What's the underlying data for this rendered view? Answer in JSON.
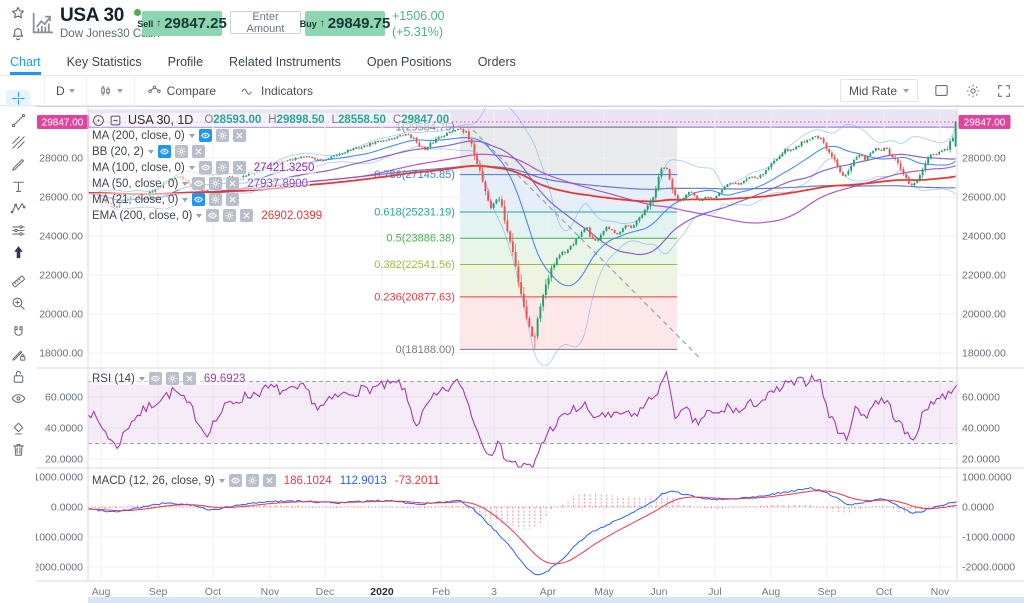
{
  "header": {
    "symbol": "USA 30",
    "subtitle": "Dow Jones30 Cash",
    "status_dot_color": "#4caf50",
    "sell_label": "Sell",
    "sell_price": "29847.25",
    "enter_amount_label": "Enter Amount",
    "buy_label": "Buy",
    "buy_price": "29849.75",
    "change": "+1506.00",
    "change_pct": "(+5.31%)",
    "button_color": "#8ed5b2",
    "change_color": "#4db386",
    "arrow_up": "↑"
  },
  "tabs": {
    "items": [
      "Chart",
      "Key Statistics",
      "Profile",
      "Related Instruments",
      "Open Positions",
      "Orders"
    ],
    "active": 0
  },
  "toolbar": {
    "timeframe": "D",
    "compare_label": "Compare",
    "indicators_label": "Indicators",
    "mid_rate_label": "Mid Rate"
  },
  "left_toolbar_icons": [
    "crosshair",
    "trend-line",
    "fib-retracement",
    "brush",
    "text",
    "xabcd-pattern",
    "forecast",
    "arrow-mark",
    "ruler",
    "zoom-in",
    "magnet",
    "drawing-mode",
    "lock",
    "eye",
    "remove-objects",
    "trash"
  ],
  "chart_data": {
    "type": "candlestick",
    "symbol_title": "USA 30, 1D",
    "ohlc": {
      "o_label": "O",
      "o": "28593.00",
      "h_label": "H",
      "h": "29898.50",
      "l_label": "L",
      "l": "28558.50",
      "c_label": "C",
      "c": "29847.00",
      "value_color": "#26a69a"
    },
    "indicators_legend": [
      {
        "name": "MA (200, close, 0)",
        "value": "",
        "value_color": "",
        "eye_active": true
      },
      {
        "name": "BB (20, 2)",
        "value": "",
        "value_color": "",
        "eye_active": true
      },
      {
        "name": "MA (100, close, 0)",
        "value": "27421.3250",
        "value_color": "#9c27b0",
        "eye_active": false
      },
      {
        "name": "MA (50, close, 0)",
        "value": "27937.8900",
        "value_color": "#7e57c2",
        "eye_active": false
      },
      {
        "name": "MA (21, close, 0)",
        "value": "",
        "value_color": "",
        "eye_active": true
      },
      {
        "name": "EMA (200, close, 0)",
        "value": "26902.0399",
        "value_color": "#e53935",
        "eye_active": false
      }
    ],
    "price_axis": {
      "current_label": "29847.00",
      "current_value": 29847,
      "current_color": "#e0459e",
      "ticks": [
        {
          "label": "28000.00",
          "value": 28000
        },
        {
          "label": "26000.00",
          "value": 26000
        },
        {
          "label": "24000.00",
          "value": 24000
        },
        {
          "label": "22000.00",
          "value": 22000
        },
        {
          "label": "20000.00",
          "value": 20000
        },
        {
          "label": "18000.00",
          "value": 18000
        }
      ]
    },
    "months": [
      {
        "label": "Aug",
        "f": 0.015
      },
      {
        "label": "Sep",
        "f": 0.0806
      },
      {
        "label": "Oct",
        "f": 0.1438
      },
      {
        "label": "Nov",
        "f": 0.2094
      },
      {
        "label": "Dec",
        "f": 0.2727
      },
      {
        "label": "2020",
        "f": 0.3383,
        "bold": true
      },
      {
        "label": "Feb",
        "f": 0.4062
      },
      {
        "label": "3",
        "f": 0.4672
      },
      {
        "label": "Apr",
        "f": 0.5293
      },
      {
        "label": "May",
        "f": 0.5938
      },
      {
        "label": "Jun",
        "f": 0.6571
      },
      {
        "label": "Jul",
        "f": 0.7215
      },
      {
        "label": "Aug",
        "f": 0.7859
      },
      {
        "label": "Sep",
        "f": 0.8504
      },
      {
        "label": "Oct",
        "f": 0.916
      },
      {
        "label": "Nov",
        "f": 0.9804
      }
    ],
    "fib": {
      "zone": [
        0.428,
        0.678
      ],
      "top_zone": {
        "from_price": 29584.75,
        "to_price": 30500,
        "fill": "rgba(126,87,194,0.16)",
        "line_color": "#8e6cc8"
      },
      "levels": [
        {
          "label": "1(29584.75)",
          "value": 29584.75,
          "color": "#787b86",
          "band_fill": "rgba(120,123,134,0.16)"
        },
        {
          "label": "0.786(27145.85)",
          "value": 27145.85,
          "color": "#3d7dd6",
          "band_fill": "rgba(61,125,214,0.13)"
        },
        {
          "label": "0.618(25231.19)",
          "value": 25231.19,
          "color": "#26a69a",
          "band_fill": "rgba(38,166,154,0.13)"
        },
        {
          "label": "0.5(23886.38)",
          "value": 23886.38,
          "color": "#4caf50",
          "band_fill": "rgba(76,175,80,0.13)"
        },
        {
          "label": "0.382(22541.56)",
          "value": 22541.56,
          "color": "#9bbb44",
          "band_fill": "rgba(155,187,68,0.17)"
        },
        {
          "label": "0.236(20877.63)",
          "value": 20877.63,
          "color": "#f23645",
          "band_fill": "rgba(242,54,69,0.12)"
        },
        {
          "label": "0(18188.00)",
          "value": 18188.0,
          "color": "#787b86",
          "band_fill": null
        }
      ]
    },
    "trendline": {
      "f1": 0.443,
      "p1": 29436,
      "f2": 0.704,
      "p2": 17744,
      "color": "#9aa0a6"
    },
    "candle_up_color": "#22a06b",
    "candle_down_color": "#ef5350",
    "ma_colors": {
      "ma21": "#2979ff",
      "ma50": "#7e57c2",
      "ma100": "#ab47bc",
      "ma200": "#5c6bc0",
      "ema200": "#e53935",
      "bb": "#5b9cf6"
    },
    "last_candle": {
      "o": 28593,
      "h": 29898.5,
      "l": 28558.5,
      "c": 29847
    },
    "price_anchors": [
      [
        0,
        26200
      ],
      [
        0.01,
        26050
      ],
      [
        0.02,
        25720
      ],
      [
        0.03,
        25480
      ],
      [
        0.042,
        25900
      ],
      [
        0.052,
        26180
      ],
      [
        0.062,
        25850
      ],
      [
        0.072,
        26350
      ],
      [
        0.082,
        26600
      ],
      [
        0.092,
        26880
      ],
      [
        0.102,
        27040
      ],
      [
        0.112,
        26840
      ],
      [
        0.122,
        26480
      ],
      [
        0.132,
        26280
      ],
      [
        0.142,
        26560
      ],
      [
        0.152,
        26940
      ],
      [
        0.162,
        27040
      ],
      [
        0.172,
        26860
      ],
      [
        0.182,
        27140
      ],
      [
        0.195,
        27380
      ],
      [
        0.205,
        27580
      ],
      [
        0.215,
        27760
      ],
      [
        0.228,
        27860
      ],
      [
        0.24,
        27980
      ],
      [
        0.252,
        28100
      ],
      [
        0.262,
        27920
      ],
      [
        0.272,
        27860
      ],
      [
        0.285,
        28140
      ],
      [
        0.3,
        28420
      ],
      [
        0.315,
        28560
      ],
      [
        0.33,
        28820
      ],
      [
        0.345,
        28960
      ],
      [
        0.358,
        29120
      ],
      [
        0.368,
        29230
      ],
      [
        0.378,
        28820
      ],
      [
        0.388,
        28380
      ],
      [
        0.395,
        28780
      ],
      [
        0.403,
        29080
      ],
      [
        0.412,
        29240
      ],
      [
        0.42,
        29420
      ],
      [
        0.428,
        29560
      ],
      [
        0.436,
        29180
      ],
      [
        0.444,
        28280
      ],
      [
        0.452,
        27180
      ],
      [
        0.458,
        26180
      ],
      [
        0.463,
        25420
      ],
      [
        0.468,
        25720
      ],
      [
        0.472,
        26080
      ],
      [
        0.477,
        25300
      ],
      [
        0.483,
        24150
      ],
      [
        0.489,
        23150
      ],
      [
        0.494,
        21950
      ],
      [
        0.499,
        20950
      ],
      [
        0.504,
        19950
      ],
      [
        0.509,
        19150
      ],
      [
        0.513,
        18620
      ],
      [
        0.518,
        19850
      ],
      [
        0.523,
        20950
      ],
      [
        0.528,
        21720
      ],
      [
        0.533,
        22320
      ],
      [
        0.539,
        22820
      ],
      [
        0.545,
        23180
      ],
      [
        0.55,
        23020
      ],
      [
        0.556,
        23560
      ],
      [
        0.562,
        23780
      ],
      [
        0.568,
        24120
      ],
      [
        0.574,
        24520
      ],
      [
        0.579,
        23880
      ],
      [
        0.585,
        23720
      ],
      [
        0.591,
        24120
      ],
      [
        0.597,
        24420
      ],
      [
        0.603,
        24280
      ],
      [
        0.609,
        24020
      ],
      [
        0.615,
        24420
      ],
      [
        0.62,
        24620
      ],
      [
        0.626,
        24380
      ],
      [
        0.632,
        24680
      ],
      [
        0.638,
        25050
      ],
      [
        0.644,
        25420
      ],
      [
        0.65,
        25900
      ],
      [
        0.653,
        26300
      ],
      [
        0.66,
        27400
      ],
      [
        0.665,
        27560
      ],
      [
        0.671,
        26700
      ],
      [
        0.677,
        25900
      ],
      [
        0.682,
        25800
      ],
      [
        0.688,
        26150
      ],
      [
        0.694,
        26300
      ],
      [
        0.7,
        25900
      ],
      [
        0.706,
        25780
      ],
      [
        0.712,
        26080
      ],
      [
        0.718,
        25900
      ],
      [
        0.724,
        26100
      ],
      [
        0.73,
        26350
      ],
      [
        0.737,
        26620
      ],
      [
        0.744,
        26750
      ],
      [
        0.75,
        26620
      ],
      [
        0.757,
        26900
      ],
      [
        0.764,
        27080
      ],
      [
        0.77,
        26980
      ],
      [
        0.777,
        27200
      ],
      [
        0.784,
        27500
      ],
      [
        0.79,
        27850
      ],
      [
        0.797,
        28200
      ],
      [
        0.804,
        28420
      ],
      [
        0.81,
        28380
      ],
      [
        0.817,
        28620
      ],
      [
        0.824,
        28850
      ],
      [
        0.832,
        29000
      ],
      [
        0.84,
        29150
      ],
      [
        0.847,
        28750
      ],
      [
        0.853,
        28250
      ],
      [
        0.859,
        27950
      ],
      [
        0.865,
        27450
      ],
      [
        0.871,
        27050
      ],
      [
        0.877,
        27500
      ],
      [
        0.883,
        27900
      ],
      [
        0.889,
        28150
      ],
      [
        0.895,
        27950
      ],
      [
        0.901,
        28250
      ],
      [
        0.907,
        28480
      ],
      [
        0.913,
        28380
      ],
      [
        0.919,
        28480
      ],
      [
        0.925,
        28150
      ],
      [
        0.931,
        27800
      ],
      [
        0.937,
        27350
      ],
      [
        0.943,
        26900
      ],
      [
        0.948,
        26580
      ],
      [
        0.953,
        26700
      ],
      [
        0.959,
        27100
      ],
      [
        0.965,
        27700
      ],
      [
        0.971,
        28050
      ],
      [
        0.977,
        28200
      ],
      [
        0.983,
        28350
      ],
      [
        0.99,
        28400
      ],
      [
        1,
        29400
      ]
    ],
    "rsi": {
      "name": "RSI (14)",
      "value": "69.6923",
      "value_color": "#a63ab2",
      "line_color": "#a63ab2",
      "band": [
        30,
        70
      ],
      "band_fill": "rgba(171,71,188,0.10)",
      "ticks": [
        {
          "label": "60.0000",
          "value": 60
        },
        {
          "label": "40.0000",
          "value": 40
        },
        {
          "label": "20.0000",
          "value": 20
        }
      ],
      "anchors": [
        [
          0,
          52
        ],
        [
          0.02,
          38
        ],
        [
          0.032,
          27
        ],
        [
          0.05,
          45
        ],
        [
          0.08,
          58
        ],
        [
          0.1,
          64
        ],
        [
          0.12,
          52
        ],
        [
          0.135,
          36
        ],
        [
          0.16,
          55
        ],
        [
          0.18,
          60
        ],
        [
          0.21,
          66
        ],
        [
          0.23,
          63
        ],
        [
          0.25,
          66
        ],
        [
          0.265,
          52
        ],
        [
          0.285,
          60
        ],
        [
          0.31,
          64
        ],
        [
          0.33,
          66
        ],
        [
          0.36,
          69
        ],
        [
          0.378,
          42
        ],
        [
          0.395,
          58
        ],
        [
          0.41,
          64
        ],
        [
          0.428,
          70
        ],
        [
          0.44,
          52
        ],
        [
          0.452,
          32
        ],
        [
          0.463,
          24
        ],
        [
          0.47,
          30
        ],
        [
          0.483,
          20
        ],
        [
          0.494,
          16
        ],
        [
          0.504,
          15
        ],
        [
          0.513,
          14
        ],
        [
          0.52,
          28
        ],
        [
          0.533,
          40
        ],
        [
          0.545,
          46
        ],
        [
          0.556,
          51
        ],
        [
          0.574,
          55
        ],
        [
          0.579,
          45
        ],
        [
          0.591,
          50
        ],
        [
          0.603,
          46
        ],
        [
          0.615,
          50
        ],
        [
          0.626,
          47
        ],
        [
          0.638,
          53
        ],
        [
          0.65,
          60
        ],
        [
          0.662,
          70
        ],
        [
          0.667,
          74
        ],
        [
          0.677,
          45
        ],
        [
          0.688,
          52
        ],
        [
          0.7,
          42
        ],
        [
          0.712,
          50
        ],
        [
          0.724,
          48
        ],
        [
          0.737,
          54
        ],
        [
          0.75,
          50
        ],
        [
          0.764,
          56
        ],
        [
          0.777,
          58
        ],
        [
          0.79,
          63
        ],
        [
          0.804,
          68
        ],
        [
          0.824,
          70
        ],
        [
          0.84,
          74
        ],
        [
          0.853,
          48
        ],
        [
          0.865,
          38
        ],
        [
          0.871,
          32
        ],
        [
          0.883,
          52
        ],
        [
          0.895,
          48
        ],
        [
          0.907,
          58
        ],
        [
          0.919,
          57
        ],
        [
          0.931,
          45
        ],
        [
          0.943,
          35
        ],
        [
          0.948,
          31
        ],
        [
          0.959,
          46
        ],
        [
          0.971,
          58
        ],
        [
          0.983,
          60
        ],
        [
          0.99,
          62
        ],
        [
          1,
          70
        ]
      ]
    },
    "macd": {
      "name": "MACD (12, 26, close, 9)",
      "values": [
        {
          "text": "186.1024",
          "color": "#f23645"
        },
        {
          "text": "112.9013",
          "color": "#2962ff"
        },
        {
          "text": "-73.2011",
          "color": "#f23645"
        }
      ],
      "line_color": "#2962ff",
      "signal_color": "#f23645",
      "hist_color": "#f23645",
      "ticks": [
        {
          "label": "1000.0000",
          "value": 1000
        },
        {
          "label": "0.0000",
          "value": 0
        },
        {
          "label": "-1000.0000",
          "value": -1000
        },
        {
          "label": "-2000.0000",
          "value": -2000
        }
      ],
      "anchors": [
        [
          0,
          -60
        ],
        [
          0.03,
          -160
        ],
        [
          0.06,
          -20
        ],
        [
          0.09,
          140
        ],
        [
          0.12,
          60
        ],
        [
          0.14,
          -110
        ],
        [
          0.17,
          40
        ],
        [
          0.2,
          170
        ],
        [
          0.23,
          200
        ],
        [
          0.26,
          170
        ],
        [
          0.29,
          140
        ],
        [
          0.32,
          190
        ],
        [
          0.35,
          220
        ],
        [
          0.378,
          80
        ],
        [
          0.4,
          140
        ],
        [
          0.428,
          200
        ],
        [
          0.444,
          -80
        ],
        [
          0.463,
          -620
        ],
        [
          0.483,
          -1250
        ],
        [
          0.499,
          -1800
        ],
        [
          0.509,
          -2150
        ],
        [
          0.518,
          -2280
        ],
        [
          0.528,
          -2150
        ],
        [
          0.545,
          -1750
        ],
        [
          0.562,
          -1250
        ],
        [
          0.579,
          -850
        ],
        [
          0.597,
          -600
        ],
        [
          0.615,
          -350
        ],
        [
          0.632,
          -120
        ],
        [
          0.65,
          180
        ],
        [
          0.66,
          420
        ],
        [
          0.671,
          520
        ],
        [
          0.683,
          450
        ],
        [
          0.7,
          330
        ],
        [
          0.718,
          260
        ],
        [
          0.737,
          260
        ],
        [
          0.757,
          310
        ],
        [
          0.777,
          380
        ],
        [
          0.797,
          480
        ],
        [
          0.817,
          560
        ],
        [
          0.832,
          620
        ],
        [
          0.847,
          520
        ],
        [
          0.865,
          230
        ],
        [
          0.877,
          60
        ],
        [
          0.889,
          130
        ],
        [
          0.901,
          210
        ],
        [
          0.913,
          260
        ],
        [
          0.925,
          160
        ],
        [
          0.937,
          -60
        ],
        [
          0.948,
          -190
        ],
        [
          0.959,
          -150
        ],
        [
          0.971,
          -30
        ],
        [
          0.983,
          60
        ],
        [
          1,
          186
        ]
      ]
    }
  }
}
